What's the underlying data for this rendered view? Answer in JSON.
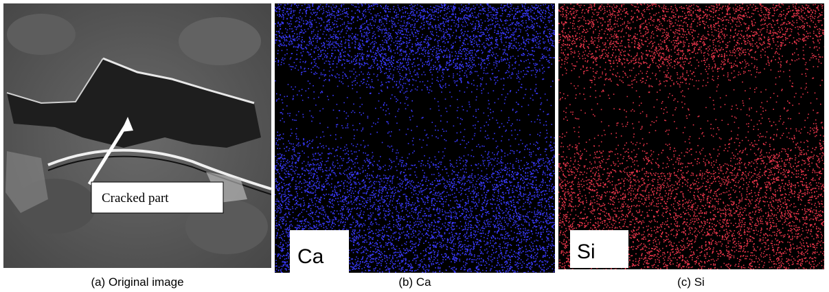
{
  "panels": [
    {
      "caption": "(a) Original image",
      "annotation": "Cracked part"
    },
    {
      "caption": "(b) Ca",
      "label": "Ca"
    },
    {
      "caption": "(c) Si",
      "label": "Si"
    }
  ]
}
